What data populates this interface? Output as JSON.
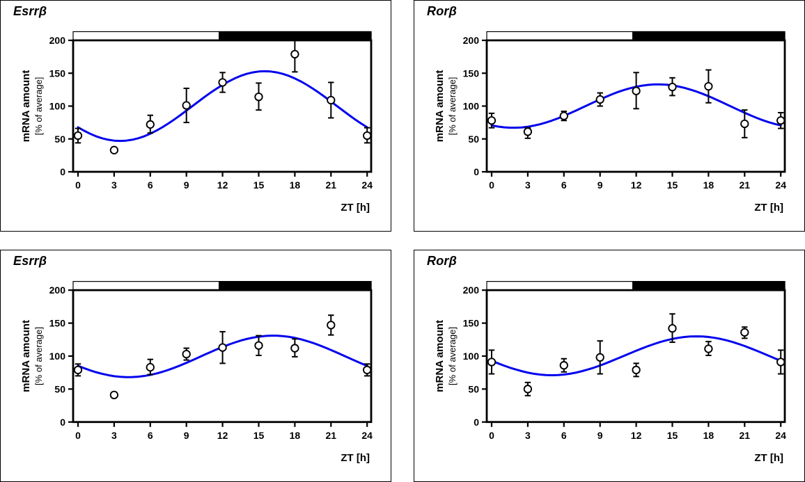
{
  "figure": {
    "background": "#ffffff",
    "panel_border_color": "#000000",
    "curve_color": "#0202ee",
    "axis_color": "#000000",
    "marker_fill": "#ffffff",
    "day_bar_fill": "#ffffff",
    "night_bar_fill": "#000000"
  },
  "axes": {
    "y_ticks": [
      0,
      50,
      100,
      150,
      200
    ],
    "x_ticks": [
      0,
      3,
      6,
      9,
      12,
      15,
      18,
      21,
      24
    ],
    "y_min": 0,
    "y_max": 200,
    "x_min": 0,
    "x_max": 24,
    "x_axis_label": "ZT [h]",
    "y_axis_label_line1": "mRNA amount",
    "y_axis_label_line2": "[% of average]",
    "light_phase": [
      0,
      12
    ],
    "dark_phase": [
      12,
      24
    ]
  },
  "chart_data": [
    {
      "panel": "top-left",
      "type": "scatter",
      "title": "Esrrβ",
      "xlabel": "ZT [h]",
      "ylabel": "mRNA amount [% of average]",
      "ylim": [
        0,
        200
      ],
      "x": [
        0,
        3,
        6,
        9,
        12,
        15,
        18,
        21,
        24
      ],
      "y": [
        55,
        33,
        72,
        101,
        136,
        114,
        179,
        109,
        55
      ],
      "err_up": [
        11,
        0,
        14,
        26,
        15,
        21,
        21,
        27,
        12
      ],
      "err_down": [
        11,
        0,
        13,
        26,
        15,
        20,
        27,
        27,
        11
      ],
      "fit_curve": {
        "type": "cosinor",
        "mesor": 100,
        "amplitude": 53,
        "peak_zt": 15.5
      },
      "light_bar": [
        0,
        12
      ],
      "dark_bar": [
        12,
        24
      ]
    },
    {
      "panel": "top-right",
      "type": "scatter",
      "title": "Rorβ",
      "xlabel": "ZT [h]",
      "ylabel": "mRNA amount [% of average]",
      "ylim": [
        0,
        200
      ],
      "x": [
        0,
        3,
        6,
        9,
        12,
        15,
        18,
        21,
        24
      ],
      "y": [
        78,
        61,
        85,
        110,
        123,
        129,
        130,
        73,
        78
      ],
      "err_up": [
        11,
        6,
        7,
        10,
        28,
        14,
        25,
        21,
        12
      ],
      "err_down": [
        11,
        10,
        7,
        10,
        27,
        13,
        25,
        21,
        12
      ],
      "fit_curve": {
        "type": "cosinor",
        "mesor": 100,
        "amplitude": 33,
        "peak_zt": 13.8
      },
      "light_bar": [
        0,
        12
      ],
      "dark_bar": [
        12,
        24
      ]
    },
    {
      "panel": "bottom-left",
      "type": "scatter",
      "title": "Esrrβ",
      "xlabel": "ZT [h]",
      "ylabel": "mRNA amount [% of average]",
      "ylim": [
        0,
        200
      ],
      "x": [
        0,
        3,
        6,
        9,
        12,
        15,
        18,
        21,
        24
      ],
      "y": [
        79,
        41,
        83,
        103,
        113,
        116,
        112,
        147,
        79
      ],
      "err_up": [
        9,
        3,
        12,
        9,
        24,
        15,
        14,
        15,
        9
      ],
      "err_down": [
        9,
        3,
        11,
        9,
        24,
        15,
        13,
        15,
        9
      ],
      "fit_curve": {
        "type": "cosinor",
        "mesor": 99.5,
        "amplitude": 31.5,
        "peak_zt": 16.2
      },
      "light_bar": [
        0,
        12
      ],
      "dark_bar": [
        12,
        24
      ]
    },
    {
      "panel": "bottom-right",
      "type": "scatter",
      "title": "Rorβ",
      "xlabel": "ZT [h]",
      "ylabel": "mRNA amount [% of average]",
      "ylim": [
        0,
        200
      ],
      "x": [
        0,
        3,
        6,
        9,
        12,
        15,
        18,
        21,
        24
      ],
      "y": [
        91,
        50,
        86,
        98,
        79,
        142,
        111,
        136,
        91
      ],
      "err_up": [
        18,
        10,
        10,
        25,
        10,
        22,
        11,
        8,
        18
      ],
      "err_down": [
        18,
        10,
        10,
        25,
        10,
        21,
        10,
        9,
        18
      ],
      "fit_curve": {
        "type": "cosinor",
        "mesor": 100.5,
        "amplitude": 29.5,
        "peak_zt": 17
      },
      "light_bar": [
        0,
        12
      ],
      "dark_bar": [
        12,
        24
      ]
    }
  ]
}
